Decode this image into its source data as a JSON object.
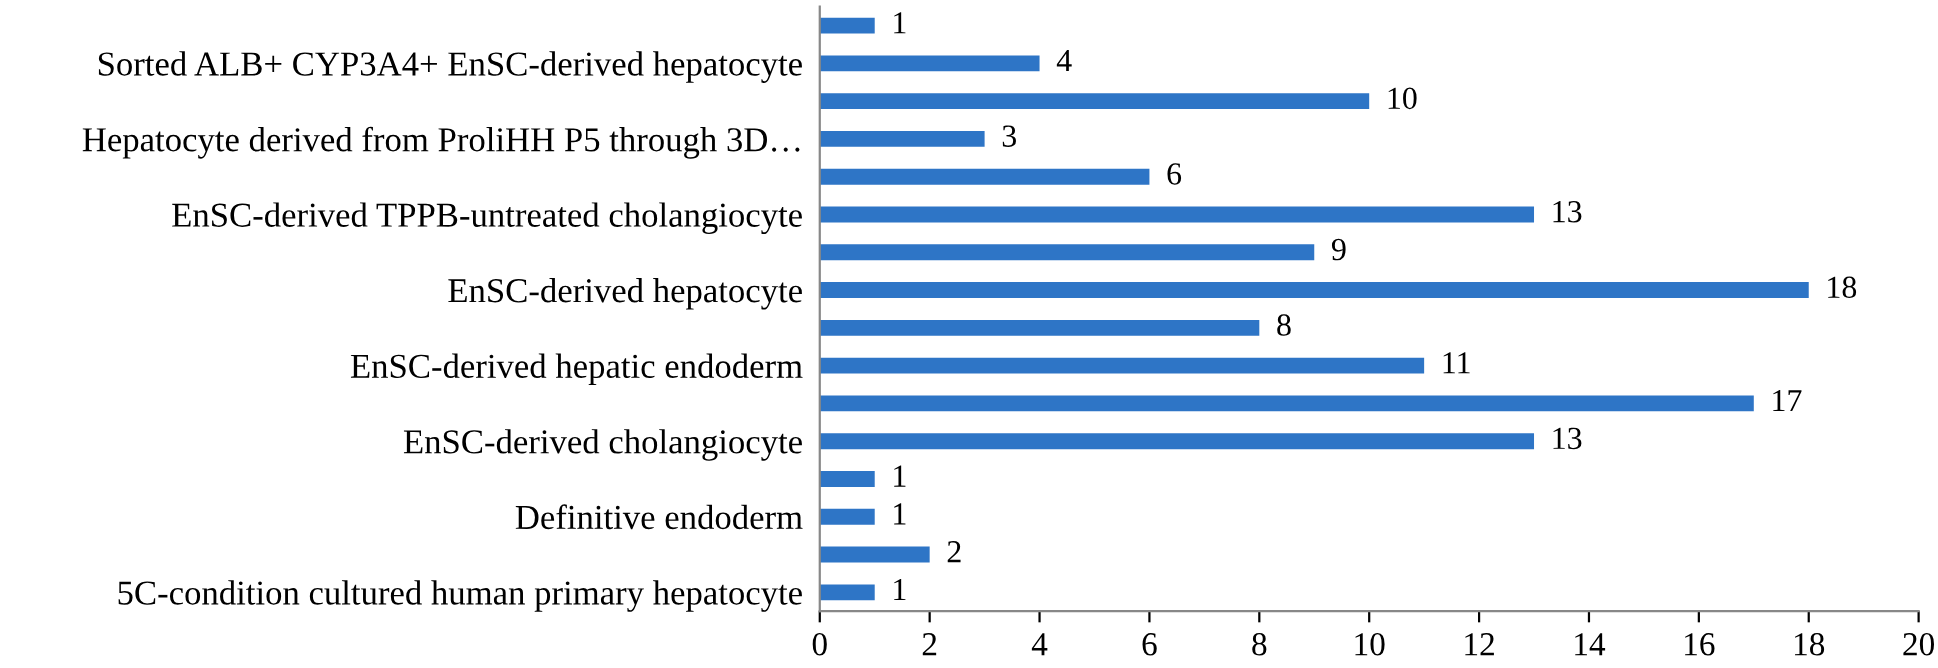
{
  "chart_data": {
    "type": "bar",
    "orientation": "horizontal",
    "categories": [
      null,
      "Sorted ALB+ CYP3A4+ EnSC-derived hepatocyte",
      null,
      "Hepatocyte derived from ProliHH P5 through 3D…",
      null,
      "EnSC-derived TPPB-untreated cholangiocyte",
      null,
      "EnSC-derived hepatocyte",
      null,
      "EnSC-derived hepatic endoderm",
      null,
      "EnSC-derived cholangiocyte",
      null,
      "Definitive endoderm",
      null,
      "5C-condition cultured human primary hepatocyte"
    ],
    "values": [
      1,
      4,
      10,
      3,
      6,
      13,
      9,
      18,
      8,
      11,
      17,
      13,
      1,
      1,
      2,
      1
    ],
    "color": "#2e75c6",
    "xlim": [
      0,
      20
    ],
    "xticks": [
      0,
      2,
      4,
      6,
      8,
      10,
      12,
      14,
      16,
      18,
      20
    ],
    "data_labels": true,
    "grid": false,
    "legend": false
  }
}
